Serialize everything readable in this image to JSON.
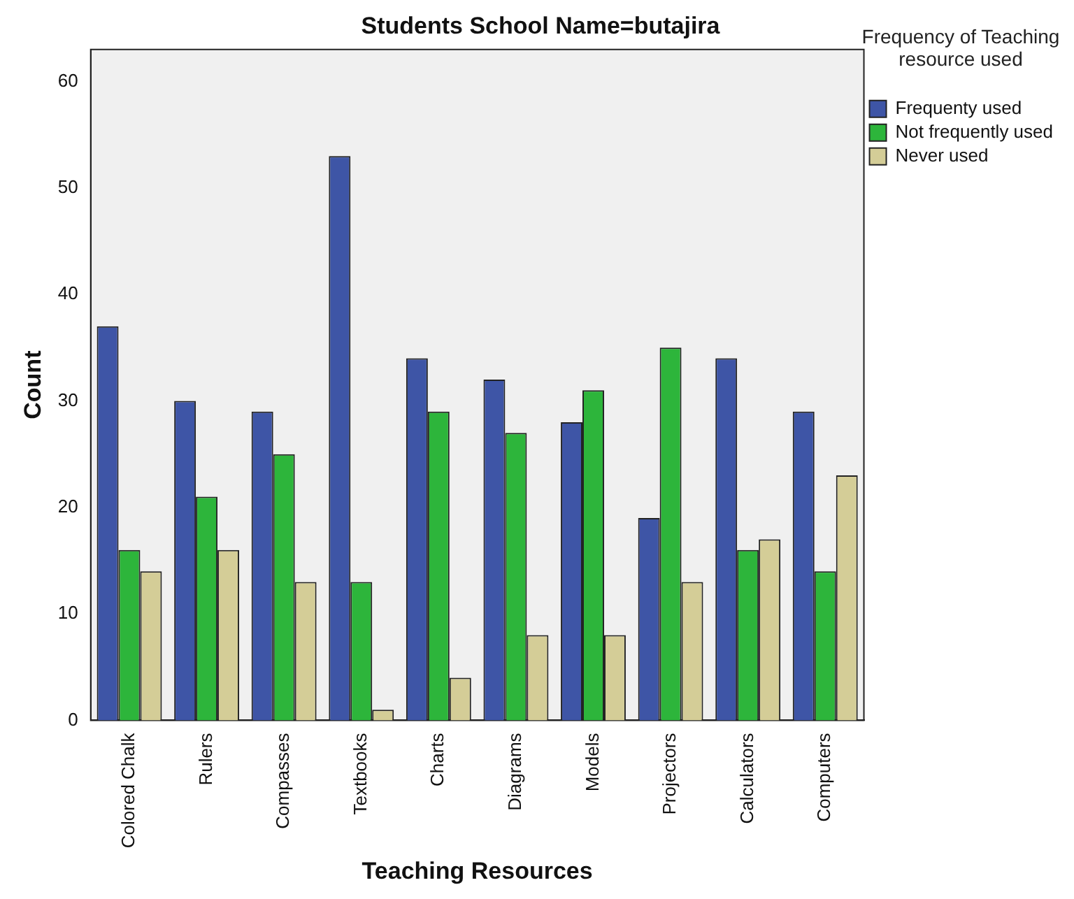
{
  "chart_data": {
    "type": "bar",
    "title": "Students School Name=butajira",
    "xlabel": "Teaching Resources",
    "ylabel": "Count",
    "legend_title": "Frequency of Teaching resource used",
    "legend": "top right",
    "categories": [
      "Colored Chalk",
      "Rulers",
      "Compasses",
      "Textbooks",
      "Charts",
      "Diagrams",
      "Models",
      "Projectors",
      "Calculators",
      "Computers"
    ],
    "series": [
      {
        "name": "Frequenty used",
        "color": "#3e55a6",
        "values": [
          37,
          30,
          29,
          53,
          34,
          32,
          28,
          19,
          34,
          29
        ]
      },
      {
        "name": "Not frequently used",
        "color": "#2db53b",
        "values": [
          16,
          21,
          25,
          13,
          29,
          27,
          31,
          35,
          16,
          14
        ]
      },
      {
        "name": "Never used",
        "color": "#d4cd97",
        "values": [
          14,
          16,
          13,
          1,
          4,
          8,
          8,
          13,
          17,
          23
        ]
      }
    ],
    "ylim": [
      0,
      63
    ],
    "yticks": [
      0,
      10,
      20,
      30,
      40,
      50,
      60
    ],
    "grid": false
  }
}
